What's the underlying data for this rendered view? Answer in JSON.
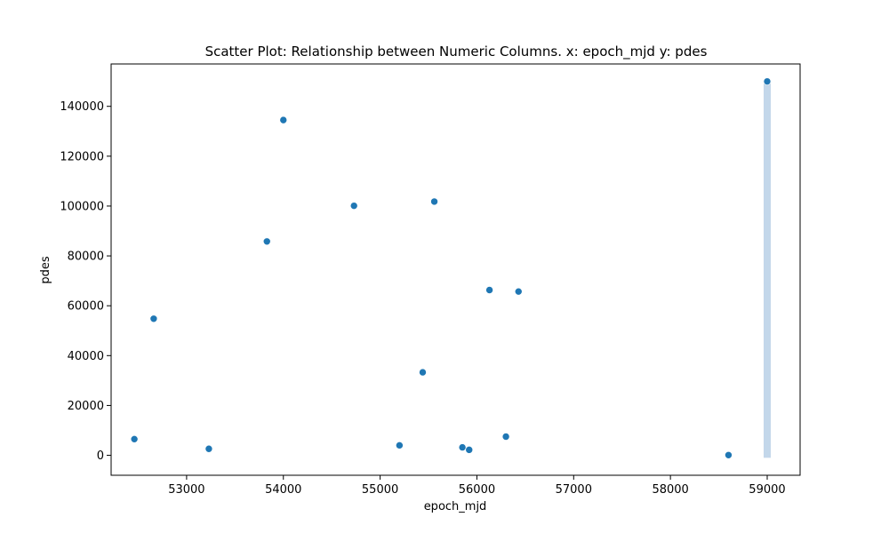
{
  "chart_data": {
    "type": "scatter",
    "title": "Scatter Plot: Relationship between Numeric Columns. x: epoch_mjd y: pdes",
    "xlabel": "epoch_mjd",
    "ylabel": "pdes",
    "xlim": [
      52220,
      59340
    ],
    "ylim": [
      -8000,
      157000
    ],
    "x_ticks": [
      53000,
      54000,
      55000,
      56000,
      57000,
      58000,
      59000
    ],
    "y_ticks": [
      0,
      20000,
      40000,
      60000,
      80000,
      100000,
      120000,
      140000
    ],
    "x_tick_labels": [
      "53000",
      "54000",
      "55000",
      "56000",
      "57000",
      "58000",
      "59000"
    ],
    "y_tick_labels": [
      "0",
      "20000",
      "40000",
      "60000",
      "80000",
      "100000",
      "120000",
      "140000"
    ],
    "grid": false,
    "colors": {
      "point": "#1f77b4",
      "band": "#b9d0e6"
    },
    "points": [
      {
        "x": 52460,
        "y": 6500
      },
      {
        "x": 52660,
        "y": 54800
      },
      {
        "x": 53230,
        "y": 2600
      },
      {
        "x": 53830,
        "y": 85800
      },
      {
        "x": 54000,
        "y": 134500
      },
      {
        "x": 54730,
        "y": 100100
      },
      {
        "x": 55200,
        "y": 4000
      },
      {
        "x": 55440,
        "y": 33300
      },
      {
        "x": 55560,
        "y": 101800
      },
      {
        "x": 55850,
        "y": 3200
      },
      {
        "x": 55920,
        "y": 2200
      },
      {
        "x": 56130,
        "y": 66300
      },
      {
        "x": 56300,
        "y": 7500
      },
      {
        "x": 56430,
        "y": 65700
      },
      {
        "x": 58600,
        "y": 100
      },
      {
        "x": 59000,
        "y": 150000
      }
    ],
    "band": {
      "x": 59000,
      "y_range": [
        -1000,
        150000
      ]
    }
  }
}
